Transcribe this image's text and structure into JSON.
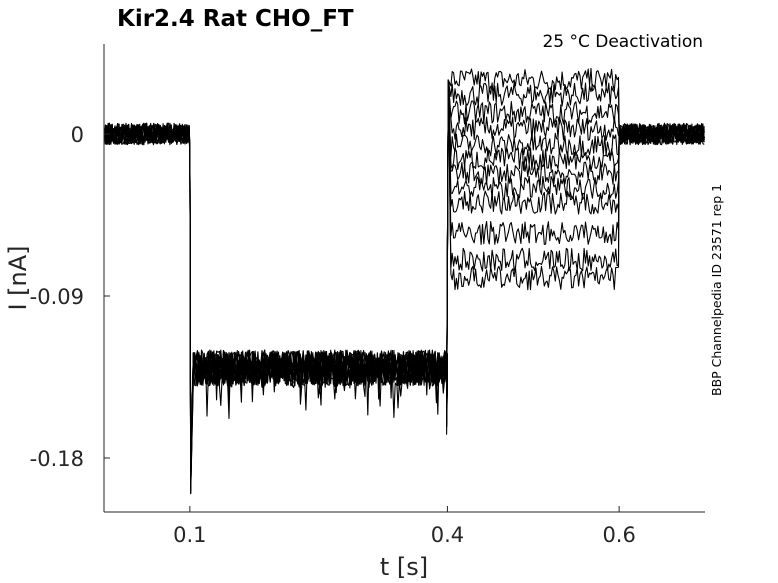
{
  "chart_data": {
    "type": "line",
    "title": "Kir2.4  Rat  CHO_FT",
    "annotation": "25 °C  Deactivation",
    "side_label": "BBP Channelpedia ID 23571 rep 1",
    "xlabel": "t [s]",
    "ylabel": "I [nA]",
    "xlim": [
      0,
      0.7
    ],
    "ylim": [
      -0.21,
      0.05
    ],
    "x_ticks": [
      0.1,
      0.4,
      0.6
    ],
    "x_tick_labels": [
      "0.1",
      "0.4",
      "0.6"
    ],
    "y_ticks": [
      0,
      -0.09,
      -0.18
    ],
    "y_tick_labels": [
      "0",
      "-0.09",
      "-0.18"
    ],
    "grid": false,
    "protocol": {
      "baseline_level": 0.0,
      "step1_start": 0.1,
      "step1_end": 0.4,
      "step1_level": -0.13,
      "step2_end": 0.6
    },
    "series": [
      {
        "step2_level": 0.03
      },
      {
        "step2_level": 0.022
      },
      {
        "step2_level": 0.012
      },
      {
        "step2_level": 0.003
      },
      {
        "step2_level": -0.006
      },
      {
        "step2_level": -0.014
      },
      {
        "step2_level": -0.022
      },
      {
        "step2_level": -0.03
      },
      {
        "step2_level": -0.038
      },
      {
        "step2_level": -0.055
      },
      {
        "step2_level": -0.07
      },
      {
        "step2_level": -0.08
      }
    ]
  }
}
